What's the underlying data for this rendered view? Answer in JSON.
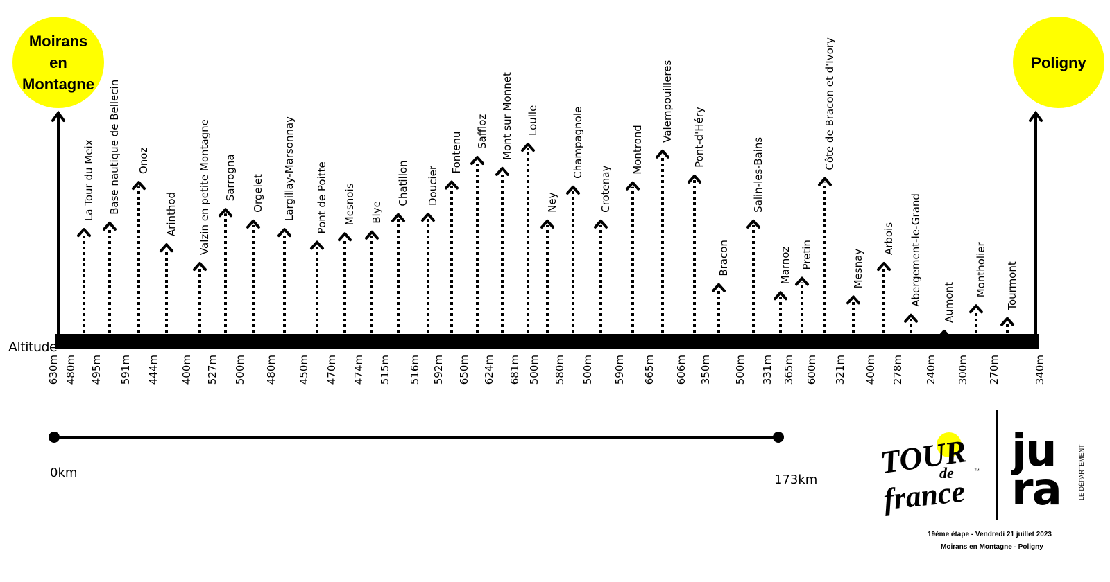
{
  "chart_data": {
    "type": "elevation-profile",
    "title": "",
    "ylabel": "Altitude",
    "start": {
      "name_lines": [
        "Moirans",
        "en",
        "Montagne"
      ],
      "altitude": "630m"
    },
    "finish": {
      "name_lines": [
        "Poligny"
      ],
      "altitude": "340m"
    },
    "waypoints": [
      {
        "name": "La Tour du Meix",
        "altitude": "480m",
        "value": 480
      },
      {
        "name": "Base nautique de Bellecin",
        "altitude": "495m",
        "value": 495
      },
      {
        "name": "Onoz",
        "altitude": "591m",
        "value": 591
      },
      {
        "name": "Arinthod",
        "altitude": "444m",
        "value": 444
      },
      {
        "name": "Valzin en petite Montagne",
        "altitude": "400m",
        "value": 400
      },
      {
        "name": "Sarrogna",
        "altitude": "527m",
        "value": 527
      },
      {
        "name": "Orgelet",
        "altitude": "500m",
        "value": 500
      },
      {
        "name": "Largillay-Marsonnay",
        "altitude": "480m",
        "value": 480
      },
      {
        "name": "Pont de Poitte",
        "altitude": "450m",
        "value": 450
      },
      {
        "name": "Mesnois",
        "altitude": "470m",
        "value": 470
      },
      {
        "name": "Blye",
        "altitude": "474m",
        "value": 474
      },
      {
        "name": "Chatillon",
        "altitude": "515m",
        "value": 515
      },
      {
        "name": "Doucier",
        "altitude": "516m",
        "value": 516
      },
      {
        "name": "Fontenu",
        "altitude": "592m",
        "value": 592
      },
      {
        "name": "Saffloz",
        "altitude": "650m",
        "value": 650
      },
      {
        "name": "Mont sur Monnet",
        "altitude": "624m",
        "value": 624
      },
      {
        "name": "Loulle",
        "altitude": "681m",
        "value": 681
      },
      {
        "name": "Ney",
        "altitude": "500m",
        "value": 500
      },
      {
        "name": "Champagnole",
        "altitude": "580m",
        "value": 580
      },
      {
        "name": "Crotenay",
        "altitude": "500m",
        "value": 500
      },
      {
        "name": "Montrond",
        "altitude": "590m",
        "value": 590
      },
      {
        "name": "Valempouilleres",
        "altitude": "665m",
        "value": 665
      },
      {
        "name": "Pont-d'Héry",
        "altitude": "606m",
        "value": 606
      },
      {
        "name": "Bracon",
        "altitude": "350m",
        "value": 350
      },
      {
        "name": "Salin-les-Bains",
        "altitude": "500m",
        "value": 500
      },
      {
        "name": "Marnoz",
        "altitude": "331m",
        "value": 331
      },
      {
        "name": "Pretin",
        "altitude": "365m",
        "value": 365
      },
      {
        "name": "Côte de Bracon et d'Ivory",
        "altitude": "600m",
        "value": 600
      },
      {
        "name": "Mesnay",
        "altitude": "321m",
        "value": 321
      },
      {
        "name": "Arbois",
        "altitude": "400m",
        "value": 400
      },
      {
        "name": "Abergement-le-Grand",
        "altitude": "278m",
        "value": 278
      },
      {
        "name": "Aumont",
        "altitude": "240m",
        "value": 240
      },
      {
        "name": "Montholier",
        "altitude": "300m",
        "value": 300
      },
      {
        "name": "Tourmont",
        "altitude": "270m",
        "value": 270
      }
    ],
    "distance_scale": {
      "start_label": "0km",
      "end_label": "173km"
    }
  },
  "colors": {
    "highlight": "#ffff00",
    "ink": "#000000"
  },
  "logos": {
    "tour_de_france": {
      "text": "TOUR de france",
      "tm": "™"
    },
    "jura": {
      "text": "jura",
      "subtitle": "LE DÉPARTEMENT"
    }
  },
  "footer": {
    "line1": "19éme étape - Vendredi 21 juillet 2023",
    "line2": "Moirans en Montagne - Poligny"
  }
}
